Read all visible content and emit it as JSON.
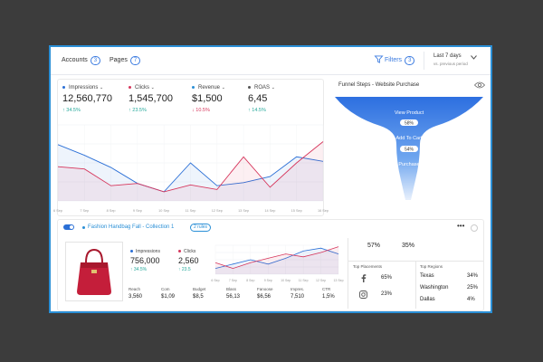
{
  "topbar": {
    "accounts_label": "Accounts",
    "accounts_count": "3",
    "pages_label": "Pages",
    "pages_count": "7",
    "filters_label": "Filters",
    "filters_count": "3",
    "date_range": "Last 7 days",
    "date_compare": "vs. previous period"
  },
  "metrics": [
    {
      "label": "Impressions",
      "value": "12,560,770",
      "change": "↑ 34.5%",
      "color": "#2a6fd6",
      "change_color": "#25a89a"
    },
    {
      "label": "Clicks",
      "value": "1,545,700",
      "change": "↑ 23.5%",
      "color": "#d6365c",
      "change_color": "#25a89a"
    },
    {
      "label": "Revenue",
      "value": "$1,500",
      "change": "↓ 10.5%",
      "color": "#2a8fd6",
      "change_color": "#d6365c"
    },
    {
      "label": "ROAS",
      "value": "6,45",
      "change": "↑ 14.5%",
      "color": "#555555",
      "change_color": "#25a89a"
    }
  ],
  "chart_data": {
    "type": "line",
    "x": [
      "6 Sep",
      "7 Sep",
      "8 Sep",
      "9 Sep",
      "10 Sep",
      "11 Sep",
      "12 Sep",
      "13 Sep",
      "14 Sep",
      "15 Sep",
      "16 Sep"
    ],
    "series": [
      {
        "name": "Impressions",
        "color": "#2a6fd6",
        "values": [
          0.74,
          0.6,
          0.44,
          0.23,
          0.12,
          0.5,
          0.2,
          0.24,
          0.32,
          0.58,
          0.52
        ]
      },
      {
        "name": "Clicks",
        "color": "#d6365c",
        "values": [
          0.45,
          0.42,
          0.2,
          0.23,
          0.12,
          0.21,
          0.15,
          0.58,
          0.18,
          0.5,
          0.78
        ]
      }
    ],
    "ylim": [
      0,
      1
    ],
    "grid": true
  },
  "funnel": {
    "title": "Funnel Steps - Website Purchase",
    "steps": [
      "View Product",
      "Add To Cart",
      "Purchase"
    ],
    "conversions": [
      "58%",
      "54%"
    ]
  },
  "campaign": {
    "title": "Fashion Handbag Fall - Collection 1",
    "rules": "2 rules",
    "more": "•••",
    "metrics": [
      {
        "label": "Impressions",
        "value": "756,000",
        "change": "↑ 34.5%",
        "color": "#2a6fd6"
      },
      {
        "label": "Clicks",
        "value": "2,560",
        "change": "↑ 23.5",
        "color": "#d6365c"
      }
    ],
    "stats": [
      {
        "label": "Reach",
        "value": "3,560"
      },
      {
        "label": "Com",
        "value": "$1,09"
      },
      {
        "label": "Budget",
        "value": "$8,5"
      },
      {
        "label": "Blass",
        "value": "56,13"
      },
      {
        "label": "Fanoose",
        "value": "$6,56"
      },
      {
        "label": "Impres.",
        "value": "7,510"
      },
      {
        "label": "CTR",
        "value": "1,5%"
      }
    ],
    "mini_chart": {
      "x": [
        "6 Sep",
        "7 Sep",
        "8 Sep",
        "9 Sep",
        "10 Sep",
        "11 Sep",
        "12 Sep",
        "13 Sep"
      ],
      "series": [
        {
          "name": "Impressions",
          "color": "#2a6fd6",
          "values": [
            0.2,
            0.35,
            0.5,
            0.35,
            0.55,
            0.8,
            0.9,
            0.7
          ]
        },
        {
          "name": "Clicks",
          "color": "#d6365c",
          "values": [
            0.4,
            0.2,
            0.4,
            0.55,
            0.7,
            0.6,
            0.75,
            0.95
          ]
        }
      ]
    },
    "pcts": [
      "57%",
      "35%"
    ],
    "placements_title": "Top Placements",
    "placements": [
      {
        "icon": "facebook-icon",
        "value": "65%"
      },
      {
        "icon": "instagram-icon",
        "value": "23%"
      }
    ],
    "regions_title": "Top Regions",
    "regions": [
      {
        "name": "Texas",
        "value": "34%"
      },
      {
        "name": "Washington",
        "value": "25%"
      },
      {
        "name": "Dallas",
        "value": "4%"
      }
    ]
  }
}
